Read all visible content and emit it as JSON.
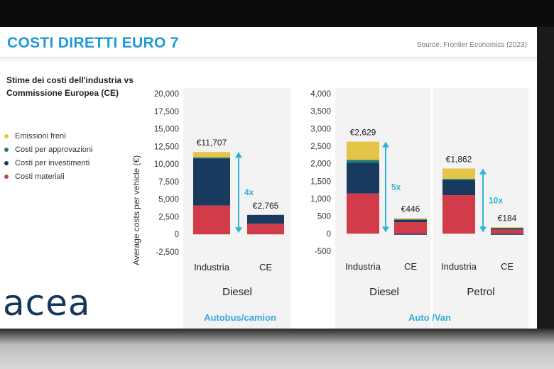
{
  "title": "COSTI DIRETTI EURO 7",
  "source": "Source: Frontier Economics (2023)",
  "subtitle": "Stime dei costi dell'industria vs Commissione Europea (CE)",
  "logo": "acea",
  "legend": [
    {
      "label": "Emissioni freni",
      "color": "#e5c548"
    },
    {
      "label": "Costi per approvazioni",
      "color": "#1d7c7a"
    },
    {
      "label": "Costi per investimenti",
      "color": "#173a5e"
    },
    {
      "label": "Costi materiali",
      "color": "#d23c4a"
    }
  ],
  "chart_data": [
    {
      "type": "bar",
      "stacked": true,
      "section_label": "Autobus/camion",
      "group": "Diesel",
      "ylabel": "Average costs per vehicle (€)",
      "ylim": [
        -2500,
        20000
      ],
      "yticks": [
        "20,000",
        "17,500",
        "15,000",
        "12,500",
        "10,000",
        "7,500",
        "5,000",
        "2,500",
        "0",
        "-2,500"
      ],
      "categories": [
        "Industria",
        "CE"
      ],
      "series": [
        {
          "name": "Costi materiali",
          "values": [
            4100,
            1500
          ]
        },
        {
          "name": "Costi per investimenti",
          "values": [
            6700,
            1265
          ]
        },
        {
          "name": "Costi per approvazioni",
          "values": [
            150,
            0
          ]
        },
        {
          "name": "Emissioni freni",
          "values": [
            757,
            0
          ]
        }
      ],
      "totals": [
        "€11,707",
        "€2,765"
      ],
      "multiplier": "4x"
    },
    {
      "type": "bar",
      "stacked": true,
      "section_label": "Auto /Van",
      "ylim": [
        -500,
        4000
      ],
      "yticks": [
        "4,000",
        "3,500",
        "3,000",
        "2,500",
        "2,000",
        "1,500",
        "1,000",
        "500",
        "0",
        "-500"
      ],
      "groups": [
        {
          "group": "Diesel",
          "categories": [
            "Industria",
            "CE"
          ],
          "series": [
            {
              "name": "Costi materiali",
              "values": [
                1150,
                330
              ]
            },
            {
              "name": "Costi per investimenti",
              "values": [
                880,
                70
              ]
            },
            {
              "name": "Costi per approvazioni",
              "values": [
                80,
                10
              ]
            },
            {
              "name": "Emissioni freni",
              "values": [
                519,
                36
              ]
            }
          ],
          "negative": [
            0,
            -30
          ],
          "totals": [
            "€2,629",
            "€446"
          ],
          "multiplier": "5x"
        },
        {
          "group": "Petrol",
          "categories": [
            "Industria",
            "CE"
          ],
          "series": [
            {
              "name": "Costi materiali",
              "values": [
                1100,
                120
              ]
            },
            {
              "name": "Costi per investimenti",
              "values": [
                430,
                40
              ]
            },
            {
              "name": "Costi per approvazioni",
              "values": [
                40,
                4
              ]
            },
            {
              "name": "Emissioni freni",
              "values": [
                292,
                20
              ]
            }
          ],
          "negative": [
            0,
            -30
          ],
          "totals": [
            "€1,862",
            "€184"
          ],
          "multiplier": "10x"
        }
      ]
    }
  ]
}
